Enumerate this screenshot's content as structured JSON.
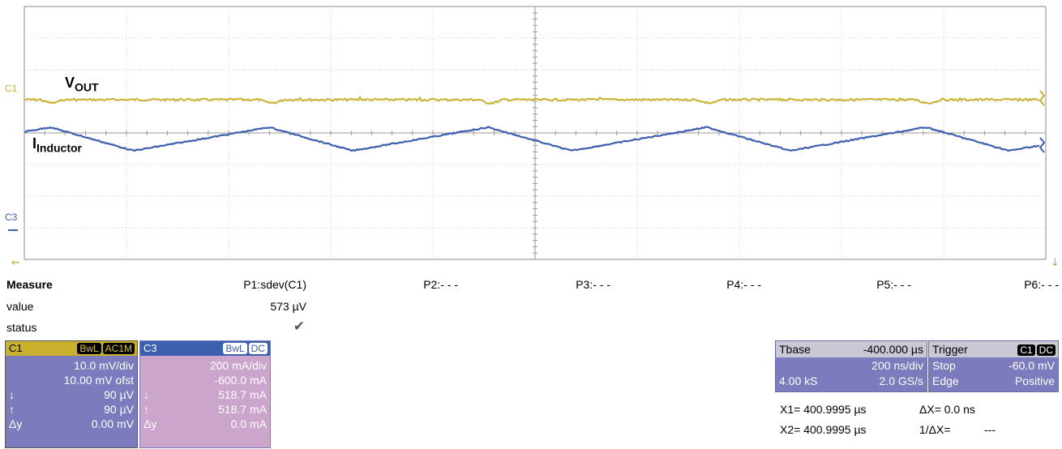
{
  "screen": {
    "channel_markers": {
      "c1": "C1",
      "c3": "C3"
    },
    "colors": {
      "c1": "#c9b12e",
      "c3": "#3c5fb0",
      "grid": "#9a9a9a"
    }
  },
  "annotations": {
    "vout_main": "V",
    "vout_sub": "OUT",
    "iind_main": "I",
    "iind_sub": "Inductor"
  },
  "measure": {
    "title": "Measure",
    "row_labels": [
      "value",
      "status"
    ],
    "params": [
      {
        "label": "P1:sdev(C1)",
        "value": "573 µV",
        "status": "✔"
      },
      {
        "label": "P2:- - -",
        "value": "",
        "status": ""
      },
      {
        "label": "P3:- - -",
        "value": "",
        "status": ""
      },
      {
        "label": "P4:- - -",
        "value": "",
        "status": ""
      },
      {
        "label": "P5:- - -",
        "value": "",
        "status": ""
      },
      {
        "label": "P6:- - -",
        "value": "",
        "status": ""
      }
    ]
  },
  "channel1": {
    "name": "C1",
    "badges": [
      "BwL",
      "AC1M"
    ],
    "vdiv": "10.0 mV/div",
    "offset": "10.00 mV ofst",
    "down_sym": "↓",
    "down_val": "90 µV",
    "up_sym": "↑",
    "up_val": "90 µV",
    "dy_sym": "Δy",
    "dy_val": "0.00 mV"
  },
  "channel3": {
    "name": "C3",
    "badges": [
      "BwL",
      "DC"
    ],
    "vdiv": "200 mA/div",
    "offset": "-600.0 mA",
    "down_sym": "↓",
    "down_val": "518.7 mA",
    "up_sym": "↑",
    "up_val": "518.7 mA",
    "dy_sym": "Δy",
    "dy_val": "0.0 mA"
  },
  "timebase": {
    "label": "Tbase",
    "delay": "-400.000 µs",
    "tdiv": "200 ns/div",
    "samples": "4.00 kS",
    "rate": "2.0 GS/s"
  },
  "trigger": {
    "label": "Trigger",
    "badges": [
      "C1",
      "DC"
    ],
    "level": "-60.0 mV",
    "mode": "Stop",
    "type": "Edge",
    "slope": "Positive"
  },
  "cursors": {
    "x1": "X1=  400.9995 µs",
    "dx": "ΔX=  0.0 ns",
    "x2": "X2=  400.9995 µs",
    "inv": "1/ΔX=",
    "inv_val": "---"
  }
}
